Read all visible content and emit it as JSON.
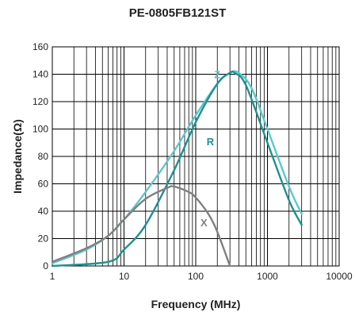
{
  "chart_data": {
    "type": "line",
    "title": "PE-0805FB121ST",
    "xlabel": "Frequency (MHz)",
    "ylabel": "Impedance(Ω)",
    "xscale": "log",
    "xlim": [
      1,
      10000
    ],
    "ylim": [
      0,
      160
    ],
    "grid": true,
    "xticks": [
      1,
      10,
      100,
      1000,
      10000
    ],
    "xtick_labels": [
      "1",
      "10",
      "100",
      "1000",
      "10000"
    ],
    "yticks": [
      0,
      20,
      40,
      60,
      80,
      100,
      120,
      140,
      160
    ],
    "ytick_labels": [
      "0",
      "20",
      "40",
      "60",
      "80",
      "100",
      "120",
      "140",
      "160"
    ],
    "series": [
      {
        "name": "Z",
        "color": "#5ec7c9",
        "x": [
          1,
          3,
          6,
          10,
          20,
          50,
          100,
          200,
          300,
          400,
          600,
          1000,
          2000,
          3000
        ],
        "y": [
          2,
          12,
          22,
          34,
          54,
          84,
          110,
          133,
          141,
          141,
          130,
          100,
          58,
          38
        ]
      },
      {
        "name": "R",
        "color": "#1e9191",
        "x": [
          1,
          6,
          10,
          20,
          50,
          100,
          200,
          300,
          350,
          500,
          1000,
          2000,
          3000
        ],
        "y": [
          0,
          3,
          12,
          30,
          70,
          105,
          133,
          141,
          141,
          132,
          90,
          48,
          30
        ]
      },
      {
        "name": "X",
        "color": "#808080",
        "x": [
          1,
          3,
          6,
          10,
          20,
          40,
          50,
          80,
          100,
          150,
          200,
          300
        ],
        "y": [
          3,
          13,
          22,
          34,
          49,
          57,
          58,
          54,
          50,
          38,
          25,
          0
        ]
      }
    ],
    "series_label_positions": {
      "Z": {
        "x": 200,
        "y": 137
      },
      "R": {
        "x": 160,
        "y": 88
      },
      "X": {
        "x": 130,
        "y": 29
      }
    }
  }
}
